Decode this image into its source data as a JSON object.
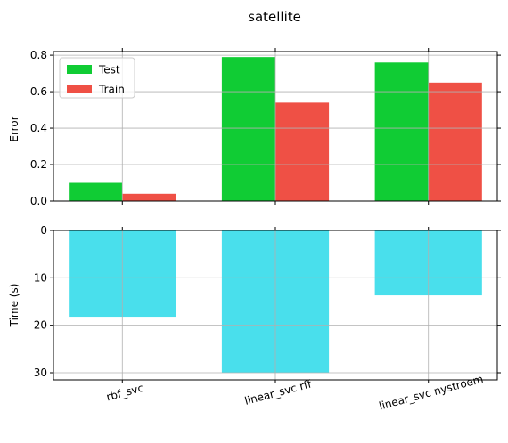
{
  "chart_data": {
    "title": "satellite",
    "categories": [
      "rbf_svc",
      "linear_svc rff",
      "linear_svc nystroem"
    ],
    "xtick_rotation_deg": 15,
    "grid": true,
    "subplots": [
      {
        "type": "bar",
        "ylabel": "Error",
        "ylim": [
          0.0,
          0.82
        ],
        "yticks": [
          0.0,
          0.2,
          0.4,
          0.6,
          0.8
        ],
        "ytick_labels": [
          "0.0",
          "0.2",
          "0.4",
          "0.6",
          "0.8"
        ],
        "legend_position": "top-left",
        "series": [
          {
            "name": "Test",
            "color": "#10cc34",
            "values": [
              0.1,
              0.79,
              0.76
            ]
          },
          {
            "name": "Train",
            "color": "#ef5045",
            "values": [
              0.04,
              0.54,
              0.65
            ]
          }
        ]
      },
      {
        "type": "bar",
        "ylabel": "Time (s)",
        "ylim": [
          0,
          31.5
        ],
        "y_inverted": true,
        "yticks": [
          0,
          10,
          20,
          30
        ],
        "ytick_labels": [
          "0",
          "10",
          "20",
          "30"
        ],
        "series": [
          {
            "color": "#49dfec",
            "values": [
              18.2,
              30.0,
              13.7
            ]
          }
        ]
      }
    ]
  }
}
